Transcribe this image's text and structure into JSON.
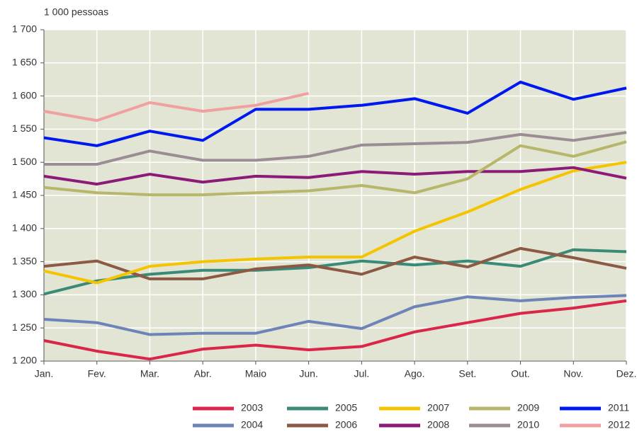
{
  "chart_data": {
    "type": "line",
    "y_label": "1 000 pessoas",
    "categories": [
      "Jan.",
      "Fev.",
      "Mar.",
      "Abr.",
      "Maio",
      "Jun.",
      "Jul.",
      "Ago.",
      "Set.",
      "Out.",
      "Nov.",
      "Dez."
    ],
    "ylim": [
      1200,
      1700
    ],
    "yticks": [
      {
        "value": 1200,
        "label": "1 200"
      },
      {
        "value": 1250,
        "label": "1 250"
      },
      {
        "value": 1300,
        "label": "1 300"
      },
      {
        "value": 1350,
        "label": "1 350"
      },
      {
        "value": 1400,
        "label": "1 400"
      },
      {
        "value": 1450,
        "label": "1 450"
      },
      {
        "value": 1500,
        "label": "1 500"
      },
      {
        "value": 1550,
        "label": "1 550"
      },
      {
        "value": 1600,
        "label": "1 600"
      },
      {
        "value": 1650,
        "label": "1 650"
      },
      {
        "value": 1700,
        "label": "1 700"
      }
    ],
    "grid": true,
    "legend": "bottom",
    "series": [
      {
        "name": "2003",
        "color": "#d9264a",
        "values": [
          1231,
          1215,
          1203,
          1218,
          1224,
          1217,
          1222,
          1244,
          1258,
          1272,
          1280,
          1291
        ]
      },
      {
        "name": "2004",
        "color": "#6e84b8",
        "values": [
          1263,
          1258,
          1240,
          1242,
          1242,
          1260,
          1249,
          1282,
          1297,
          1291,
          1296,
          1299
        ]
      },
      {
        "name": "2005",
        "color": "#3a8a78",
        "values": [
          1301,
          1321,
          1331,
          1337,
          1337,
          1341,
          1351,
          1345,
          1351,
          1343,
          1368,
          1365
        ]
      },
      {
        "name": "2006",
        "color": "#8c5a44",
        "values": [
          1343,
          1351,
          1324,
          1324,
          1339,
          1345,
          1331,
          1357,
          1342,
          1370,
          1356,
          1340
        ]
      },
      {
        "name": "2007",
        "color": "#f5c400",
        "values": [
          1336,
          1318,
          1343,
          1350,
          1354,
          1357,
          1357,
          1396,
          1425,
          1459,
          1487,
          1500
        ]
      },
      {
        "name": "2008",
        "color": "#8b1a78",
        "values": [
          1479,
          1467,
          1482,
          1470,
          1479,
          1477,
          1486,
          1482,
          1486,
          1486,
          1492,
          1476
        ]
      },
      {
        "name": "2009",
        "color": "#b8b66a",
        "values": [
          1462,
          1454,
          1451,
          1451,
          1454,
          1457,
          1465,
          1454,
          1475,
          1525,
          1509,
          1531
        ]
      },
      {
        "name": "2010",
        "color": "#9c8c94",
        "values": [
          1497,
          1497,
          1517,
          1503,
          1503,
          1509,
          1526,
          1528,
          1530,
          1542,
          1533,
          1545
        ]
      },
      {
        "name": "2011",
        "color": "#0018f0",
        "values": [
          1537,
          1525,
          1547,
          1533,
          1580,
          1580,
          1586,
          1596,
          1574,
          1621,
          1595,
          1612
        ]
      },
      {
        "name": "2012",
        "color": "#f0a0a0",
        "values": [
          1577,
          1563,
          1590,
          1577,
          1586,
          1604,
          null,
          null,
          null,
          null,
          null,
          null
        ]
      }
    ]
  }
}
